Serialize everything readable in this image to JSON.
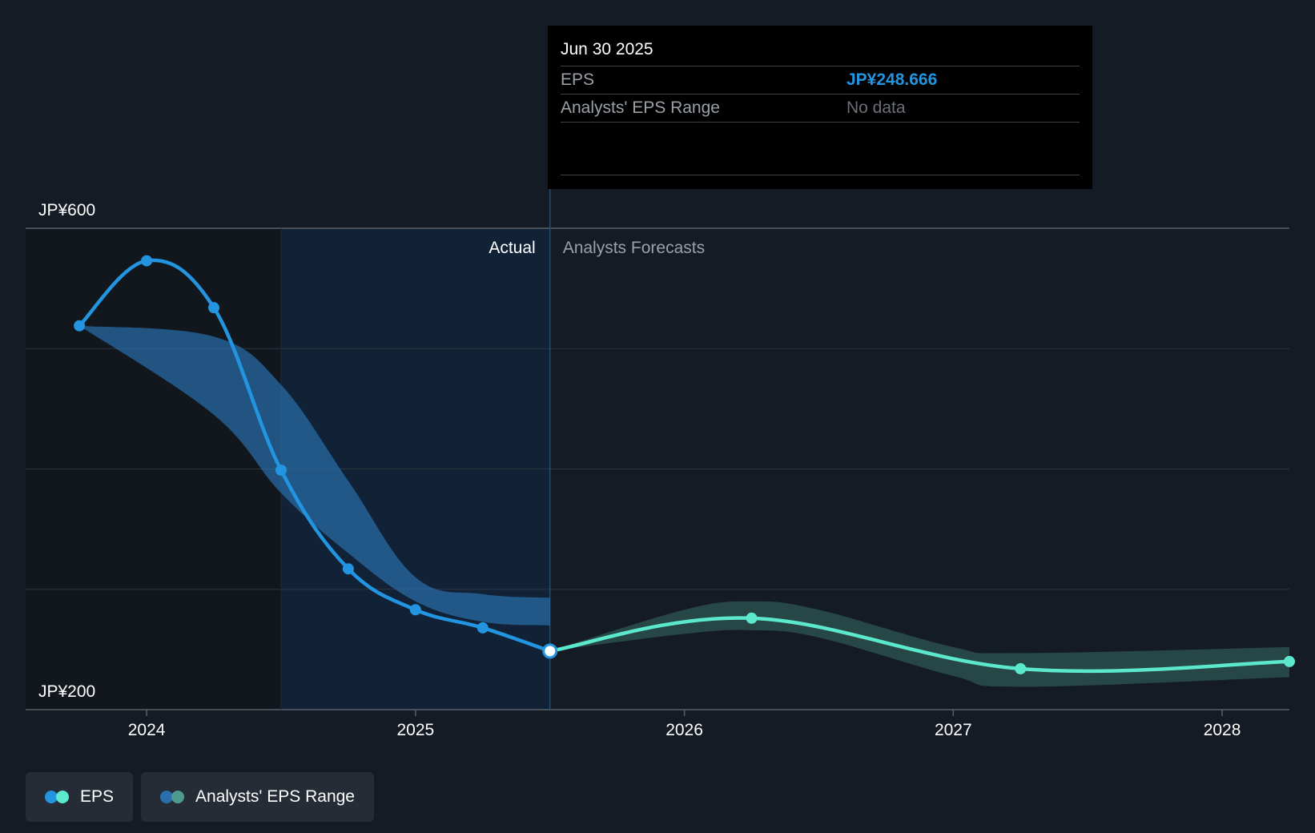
{
  "chart_data": {
    "type": "line",
    "y_axis": {
      "min": 200,
      "max": 600,
      "tick_labels": [
        "JP¥600",
        "JP¥200"
      ]
    },
    "x_axis": {
      "range": [
        2023.55,
        2028.25
      ],
      "tick_values": [
        2024,
        2025,
        2026,
        2027,
        2028
      ],
      "tick_labels": [
        "2024",
        "2025",
        "2026",
        "2027",
        "2028"
      ]
    },
    "region_labels": {
      "actual": "Actual",
      "forecast": "Analysts Forecasts"
    },
    "series": [
      {
        "name": "EPS",
        "color": "#2394df",
        "points": [
          {
            "x": 2023.75,
            "y": 519
          },
          {
            "x": 2024.0,
            "y": 573
          },
          {
            "x": 2024.25,
            "y": 534
          },
          {
            "x": 2024.5,
            "y": 399
          },
          {
            "x": 2024.75,
            "y": 317
          },
          {
            "x": 2025.0,
            "y": 283
          },
          {
            "x": 2025.25,
            "y": 268
          },
          {
            "x": 2025.5,
            "y": 248.666
          }
        ]
      },
      {
        "name": "EPS forecast",
        "color": "#5ce8cc",
        "points": [
          {
            "x": 2025.5,
            "y": 248.666
          },
          {
            "x": 2026.25,
            "y": 276
          },
          {
            "x": 2027.25,
            "y": 234
          },
          {
            "x": 2028.25,
            "y": 240
          }
        ]
      }
    ],
    "ranges": [
      {
        "name": "Analysts' EPS Range (past)",
        "color": "#2a6fab",
        "x": [
          2023.75,
          2024.25,
          2024.5,
          2024.75,
          2025.0,
          2025.25,
          2025.5
        ],
        "low": [
          519,
          445,
          380,
          330,
          290,
          273,
          270
        ],
        "high": [
          519,
          510,
          470,
          390,
          310,
          296,
          293
        ]
      },
      {
        "name": "Analysts' EPS Range (forecast)",
        "color": "#2d5a55",
        "x": [
          2025.5,
          2026.0,
          2026.25,
          2026.5,
          2027.0,
          2027.25,
          2028.25
        ],
        "low": [
          248.666,
          263,
          266,
          260,
          228,
          219,
          227
        ],
        "high": [
          248.666,
          283,
          290,
          283,
          252,
          247,
          252
        ]
      }
    ],
    "highlight_point": {
      "x": 2025.5,
      "y": 248.666
    }
  },
  "tooltip": {
    "date": "Jun 30 2025",
    "rows": [
      {
        "label": "EPS",
        "value": "JP¥248.666"
      },
      {
        "label": "Analysts' EPS Range",
        "value": "No data"
      }
    ]
  },
  "legend": [
    {
      "label": "EPS",
      "colors": [
        "#2394df",
        "#5ce8cc"
      ]
    },
    {
      "label": "Analysts' EPS Range",
      "colors": [
        "#2a6fab",
        "#4e9a8f"
      ]
    }
  ]
}
